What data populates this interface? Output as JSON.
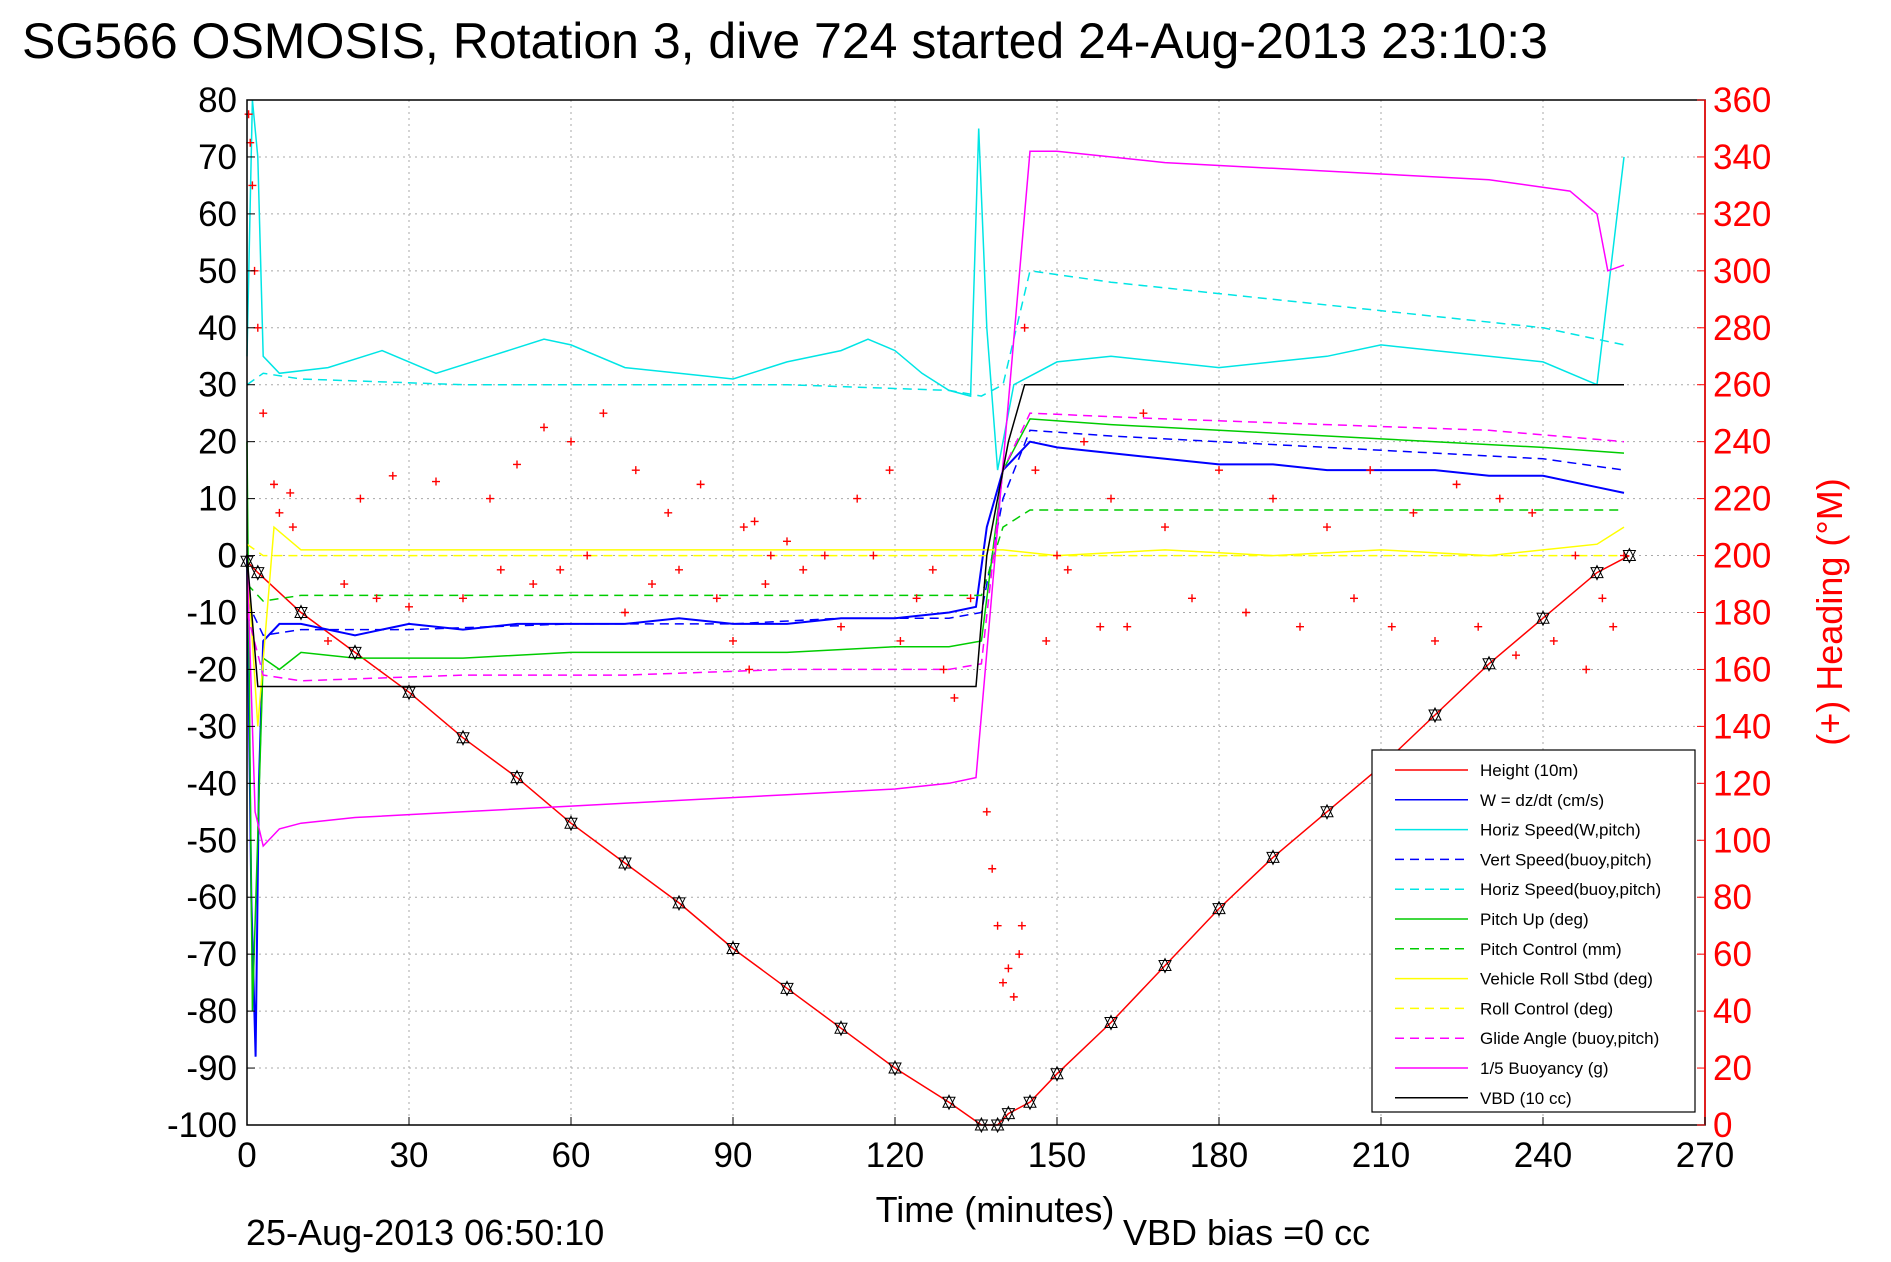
{
  "chart_data": {
    "type": "line",
    "title": "SG566 OSMOSIS, Rotation 3, dive 724 started 24-Aug-2013 23:10:3",
    "xlabel": "Time (minutes)",
    "ylabel_right": "(+) Heading (°M)",
    "footer_left": "25-Aug-2013 06:50:10",
    "footer_right": "VBD bias =0 cc",
    "xlim": [
      0,
      270
    ],
    "ylim": [
      -100,
      80
    ],
    "ylim_right": [
      0,
      360
    ],
    "xticks": [
      "0",
      "30",
      "60",
      "90",
      "120",
      "150",
      "180",
      "210",
      "240",
      "270"
    ],
    "yticks_left": [
      "80",
      "70",
      "60",
      "50",
      "40",
      "30",
      "20",
      "10",
      "0",
      "-10",
      "-20",
      "-30",
      "-40",
      "-50",
      "-60",
      "-70",
      "-80",
      "-90",
      "-100"
    ],
    "yticks_right": [
      "360",
      "340",
      "320",
      "300",
      "280",
      "260",
      "240",
      "220",
      "200",
      "180",
      "160",
      "140",
      "120",
      "100",
      "80",
      "60",
      "40",
      "20",
      "0"
    ],
    "grid": true,
    "legend_position": "bottom-right",
    "colors": {
      "height": "#ff0000",
      "w": "#0000ff",
      "horiz_w": "#00e5e5",
      "vert_buoy": "#0000ff",
      "horiz_buoy": "#00e5e5",
      "pitch": "#00cc00",
      "pitch_ctrl": "#00cc00",
      "roll": "#ffff00",
      "roll_ctrl": "#ffff00",
      "glide": "#ff00ff",
      "buoyancy": "#ff00ff",
      "vbd": "#000000",
      "heading": "#ff0000"
    },
    "series": [
      {
        "name": "Height (10m)",
        "key": "height",
        "color": "#ff0000",
        "dash": false,
        "x": [
          0,
          2,
          10,
          20,
          30,
          40,
          50,
          60,
          70,
          80,
          90,
          100,
          110,
          120,
          130,
          136,
          139,
          141,
          145,
          150,
          160,
          170,
          180,
          190,
          200,
          210,
          220,
          230,
          240,
          250,
          256
        ],
        "y": [
          -1,
          -3,
          -10,
          -17,
          -24,
          -32,
          -39,
          -47,
          -54,
          -61,
          -69,
          -76,
          -83,
          -90,
          -96,
          -100,
          -100,
          -98,
          -96,
          -91,
          -82,
          -72,
          -62,
          -53,
          -45,
          -37,
          -28,
          -19,
          -11,
          -3,
          0
        ]
      },
      {
        "name": "W = dz/dt (cm/s)",
        "key": "w",
        "color": "#0000ff",
        "dash": false,
        "x": [
          0,
          0.8,
          1.6,
          2.2,
          3,
          6,
          10,
          20,
          30,
          40,
          50,
          60,
          70,
          80,
          90,
          100,
          110,
          120,
          130,
          135,
          137,
          140,
          145,
          150,
          160,
          170,
          180,
          190,
          200,
          210,
          220,
          230,
          240,
          250,
          255
        ],
        "y": [
          0,
          -60,
          -88,
          -40,
          -15,
          -12,
          -12,
          -14,
          -12,
          -13,
          -12,
          -12,
          -12,
          -11,
          -12,
          -12,
          -11,
          -11,
          -10,
          -9,
          5,
          15,
          20,
          19,
          18,
          17,
          16,
          16,
          15,
          15,
          15,
          14,
          14,
          12,
          11
        ]
      },
      {
        "name": "Horiz Speed(W,pitch)",
        "key": "horiz_w",
        "color": "#00e5e5",
        "dash": false,
        "x": [
          0,
          1,
          2,
          3,
          6,
          15,
          25,
          35,
          45,
          55,
          60,
          70,
          80,
          90,
          100,
          110,
          115,
          120,
          125,
          130,
          134,
          135.5,
          137,
          139,
          142,
          150,
          160,
          170,
          180,
          190,
          200,
          210,
          220,
          230,
          240,
          250,
          255
        ],
        "y": [
          35,
          80,
          70,
          35,
          32,
          33,
          36,
          32,
          35,
          38,
          37,
          33,
          32,
          31,
          34,
          36,
          38,
          36,
          32,
          29,
          28,
          75,
          40,
          15,
          30,
          34,
          35,
          34,
          33,
          34,
          35,
          37,
          36,
          35,
          34,
          30,
          70
        ]
      },
      {
        "name": "Vert Speed(buoy,pitch)",
        "key": "vert_buoy",
        "color": "#0000ff",
        "dash": true,
        "x": [
          0,
          3,
          10,
          30,
          60,
          90,
          110,
          130,
          136,
          140,
          145,
          160,
          180,
          200,
          220,
          240,
          255
        ],
        "y": [
          -8,
          -14,
          -13,
          -13,
          -12,
          -12,
          -11,
          -11,
          -10,
          10,
          22,
          21,
          20,
          19,
          18,
          17,
          15
        ]
      },
      {
        "name": "Horiz Speed(buoy,pitch)",
        "key": "horiz_buoy",
        "color": "#00e5e5",
        "dash": true,
        "x": [
          0,
          3,
          10,
          40,
          70,
          100,
          130,
          136,
          140,
          145,
          160,
          180,
          200,
          220,
          240,
          255
        ],
        "y": [
          30,
          32,
          31,
          30,
          30,
          30,
          29,
          28,
          30,
          50,
          48,
          46,
          44,
          42,
          40,
          37
        ]
      },
      {
        "name": "Pitch Up (deg)",
        "key": "pitch",
        "color": "#00cc00",
        "dash": false,
        "x": [
          0,
          1,
          3,
          6,
          10,
          20,
          40,
          60,
          80,
          100,
          120,
          130,
          136,
          140,
          145,
          160,
          180,
          200,
          220,
          240,
          255
        ],
        "y": [
          20,
          -80,
          -18,
          -20,
          -17,
          -18,
          -18,
          -17,
          -17,
          -17,
          -16,
          -16,
          -15,
          15,
          24,
          23,
          22,
          21,
          20,
          19,
          18
        ]
      },
      {
        "name": "Pitch Control (mm)",
        "key": "pitch_ctrl",
        "color": "#00cc00",
        "dash": true,
        "x": [
          0,
          3,
          10,
          30,
          60,
          90,
          120,
          136,
          140,
          145,
          170,
          200,
          230,
          255
        ],
        "y": [
          -5,
          -8,
          -7,
          -7,
          -7,
          -7,
          -7,
          -7,
          5,
          8,
          8,
          8,
          8,
          8
        ]
      },
      {
        "name": "Vehicle Roll Stbd (deg)",
        "key": "roll",
        "color": "#ffff00",
        "dash": false,
        "x": [
          0,
          2,
          5,
          10,
          20,
          40,
          60,
          80,
          100,
          120,
          136,
          140,
          150,
          170,
          190,
          210,
          230,
          250,
          255
        ],
        "y": [
          0,
          -30,
          5,
          1,
          1,
          1,
          1,
          1,
          1,
          1,
          1,
          1,
          0,
          1,
          0,
          1,
          0,
          2,
          5
        ]
      },
      {
        "name": "Roll Control (deg)",
        "key": "roll_ctrl",
        "color": "#ffff00",
        "dash": true,
        "x": [
          0,
          3,
          30,
          60,
          90,
          120,
          136,
          140,
          170,
          200,
          230,
          255
        ],
        "y": [
          2,
          0,
          0,
          0,
          0,
          0,
          0,
          0,
          0,
          0,
          0,
          0
        ]
      },
      {
        "name": "Glide Angle (buoy,pitch)",
        "key": "glide",
        "color": "#ff00ff",
        "dash": true,
        "x": [
          0,
          3,
          10,
          40,
          70,
          100,
          130,
          136,
          140,
          145,
          170,
          200,
          230,
          255
        ],
        "y": [
          -10,
          -21,
          -22,
          -21,
          -21,
          -20,
          -20,
          -19,
          15,
          25,
          24,
          23,
          22,
          20
        ]
      },
      {
        "name": "1/5 Buoyancy (g)",
        "key": "buoyancy",
        "color": "#ff00ff",
        "dash": false,
        "x": [
          0,
          1.5,
          3,
          6,
          10,
          20,
          40,
          60,
          80,
          100,
          120,
          130,
          135,
          145,
          150,
          170,
          190,
          210,
          230,
          245,
          250,
          252,
          255
        ],
        "y": [
          0,
          -45,
          -51,
          -48,
          -47,
          -46,
          -45,
          -44,
          -43,
          -42,
          -41,
          -40,
          -39,
          71,
          71,
          69,
          68,
          67,
          66,
          64,
          60,
          50,
          51
        ]
      },
      {
        "name": "VBD (10 cc)",
        "key": "vbd",
        "color": "#000000",
        "dash": false,
        "x": [
          0,
          2,
          10,
          30,
          60,
          90,
          120,
          135,
          137,
          141,
          144,
          150,
          180,
          210,
          240,
          255
        ],
        "y": [
          0,
          -23,
          -23,
          -23,
          -23,
          -23,
          -23,
          -23,
          0,
          20,
          30,
          30,
          30,
          30,
          30,
          30
        ]
      }
    ],
    "heading_markers": {
      "name": "(+) Heading",
      "x": [
        0.3,
        0.6,
        1,
        1.4,
        2,
        3,
        5,
        6,
        8,
        8.5,
        15,
        18,
        21,
        24,
        27,
        30,
        35,
        40,
        45,
        47,
        50,
        53,
        55,
        58,
        60,
        63,
        66,
        70,
        72,
        75,
        78,
        80,
        84,
        87,
        90,
        92,
        93,
        94,
        96,
        97,
        100,
        103,
        107,
        110,
        113,
        116,
        119,
        121,
        124,
        127,
        129,
        131,
        134,
        137,
        138,
        139,
        140,
        141,
        142,
        143,
        143.5,
        144,
        146,
        148,
        150,
        152,
        155,
        158,
        160,
        163,
        166,
        170,
        175,
        180,
        185,
        190,
        195,
        200,
        205,
        208,
        212,
        216,
        220,
        224,
        228,
        232,
        235,
        238,
        242,
        246,
        248,
        251,
        253,
        255
      ],
      "y": [
        355,
        345,
        330,
        300,
        280,
        250,
        225,
        215,
        222,
        210,
        170,
        190,
        220,
        185,
        228,
        182,
        226,
        185,
        220,
        195,
        232,
        190,
        245,
        195,
        240,
        200,
        250,
        180,
        230,
        190,
        215,
        195,
        225,
        185,
        170,
        210,
        160,
        212,
        190,
        200,
        205,
        195,
        200,
        175,
        220,
        200,
        230,
        170,
        185,
        195,
        160,
        150,
        185,
        110,
        90,
        70,
        50,
        55,
        45,
        60,
        70,
        280,
        230,
        170,
        200,
        195,
        240,
        175,
        220,
        175,
        250,
        210,
        185,
        230,
        180,
        220,
        175,
        210,
        185,
        230,
        175,
        215,
        170,
        225,
        175,
        220,
        165,
        215,
        170,
        200,
        160,
        185,
        175,
        200
      ]
    }
  },
  "legend": {
    "items": [
      {
        "label": "Height (10m)",
        "color": "#ff0000",
        "dash": false
      },
      {
        "label": "W = dz/dt (cm/s)",
        "color": "#0000ff",
        "dash": false
      },
      {
        "label": "Horiz Speed(W,pitch)",
        "color": "#00e5e5",
        "dash": false
      },
      {
        "label": "Vert Speed(buoy,pitch)",
        "color": "#0000ff",
        "dash": true
      },
      {
        "label": "Horiz Speed(buoy,pitch)",
        "color": "#00e5e5",
        "dash": true
      },
      {
        "label": "Pitch Up (deg)",
        "color": "#00cc00",
        "dash": false
      },
      {
        "label": "Pitch Control (mm)",
        "color": "#00cc00",
        "dash": true
      },
      {
        "label": "Vehicle Roll Stbd (deg)",
        "color": "#ffff00",
        "dash": false
      },
      {
        "label": "Roll Control (deg)",
        "color": "#ffff00",
        "dash": true
      },
      {
        "label": "Glide Angle (buoy,pitch)",
        "color": "#ff00ff",
        "dash": true
      },
      {
        "label": "1/5 Buoyancy (g)",
        "color": "#ff00ff",
        "dash": false
      },
      {
        "label": "VBD (10 cc)",
        "color": "#000000",
        "dash": false
      }
    ]
  }
}
